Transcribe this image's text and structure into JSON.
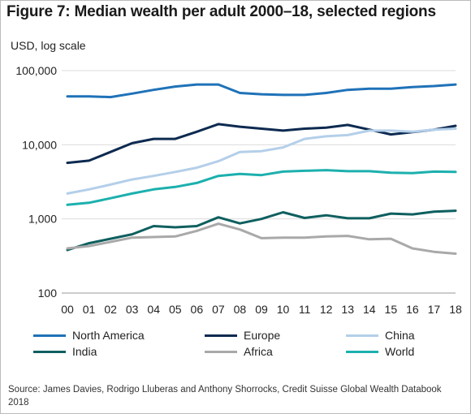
{
  "title": "Figure 7: Median wealth per adult 2000–18, selected regions",
  "source": "Source: James Davies, Rodrigo Lluberas and Anthony Shorrocks, Credit Suisse Global Wealth Databook 2018",
  "chart_data": {
    "type": "line",
    "title": "Figure 7: Median wealth per adult 2000–18, selected regions",
    "ylabel": "USD, log scale",
    "xlabel": "",
    "y_scale": "log",
    "ylim": [
      100,
      100000
    ],
    "y_ticks": [
      100,
      1000,
      10000,
      100000
    ],
    "y_tick_labels": [
      "100",
      "1,000",
      "10,000",
      "100,000"
    ],
    "categories": [
      "00",
      "01",
      "02",
      "03",
      "04",
      "05",
      "06",
      "07",
      "08",
      "09",
      "10",
      "11",
      "12",
      "13",
      "14",
      "15",
      "16",
      "17",
      "18"
    ],
    "grid": "horizontal",
    "legend_position": "bottom",
    "series": [
      {
        "name": "North America",
        "color": "#1f72b8",
        "values": [
          45000,
          45000,
          44000,
          49000,
          55000,
          61000,
          65000,
          65000,
          50000,
          48000,
          47000,
          47000,
          50000,
          55000,
          57000,
          57000,
          60000,
          62000,
          65000
        ]
      },
      {
        "name": "Europe",
        "color": "#0d2a50",
        "values": [
          5700,
          6100,
          8000,
          10500,
          12000,
          12000,
          15000,
          19000,
          17500,
          16500,
          15500,
          16500,
          17000,
          18500,
          16000,
          13800,
          14800,
          16000,
          18000
        ]
      },
      {
        "name": "China",
        "color": "#b4cfe9",
        "values": [
          2200,
          2500,
          2900,
          3400,
          3800,
          4300,
          4900,
          6000,
          8000,
          8200,
          9200,
          12000,
          13000,
          13500,
          15500,
          15500,
          15000,
          16000,
          16500
        ]
      },
      {
        "name": "India",
        "color": "#0f5f5f",
        "values": [
          380,
          470,
          540,
          620,
          800,
          770,
          800,
          1050,
          870,
          1000,
          1230,
          1030,
          1120,
          1020,
          1020,
          1180,
          1150,
          1250,
          1290
        ]
      },
      {
        "name": "Africa",
        "color": "#a9a9a9",
        "values": [
          400,
          430,
          490,
          560,
          570,
          580,
          690,
          860,
          720,
          550,
          560,
          560,
          580,
          590,
          530,
          540,
          400,
          360,
          340
        ]
      },
      {
        "name": "World",
        "color": "#1cb0ae",
        "values": [
          1550,
          1650,
          1900,
          2200,
          2500,
          2700,
          3050,
          3800,
          4050,
          3900,
          4350,
          4450,
          4550,
          4400,
          4400,
          4200,
          4150,
          4350,
          4300
        ]
      }
    ]
  }
}
